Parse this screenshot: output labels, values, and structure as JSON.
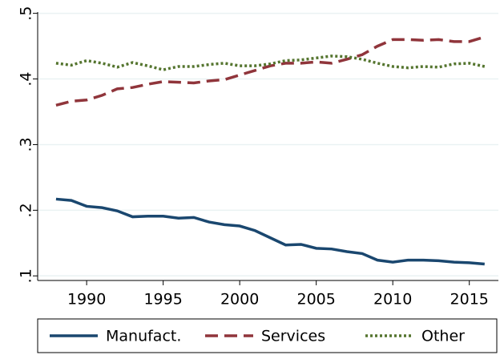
{
  "chart_data": {
    "type": "line",
    "x": [
      1988,
      1989,
      1990,
      1991,
      1992,
      1993,
      1994,
      1995,
      1996,
      1997,
      1998,
      1999,
      2000,
      2001,
      2002,
      2003,
      2004,
      2005,
      2006,
      2007,
      2008,
      2009,
      2010,
      2011,
      2012,
      2013,
      2014,
      2015,
      2016
    ],
    "series": [
      {
        "name": "Manufact.",
        "color": "#1a476f",
        "dash": "solid",
        "values": [
          0.217,
          0.215,
          0.206,
          0.204,
          0.199,
          0.19,
          0.191,
          0.191,
          0.188,
          0.189,
          0.182,
          0.178,
          0.176,
          0.169,
          0.158,
          0.147,
          0.148,
          0.142,
          0.141,
          0.137,
          0.134,
          0.124,
          0.121,
          0.124,
          0.124,
          0.123,
          0.121,
          0.12,
          0.118
        ]
      },
      {
        "name": "Services",
        "color": "#90353b",
        "dash": "long",
        "values": [
          0.36,
          0.366,
          0.368,
          0.375,
          0.385,
          0.387,
          0.392,
          0.396,
          0.395,
          0.394,
          0.397,
          0.399,
          0.406,
          0.413,
          0.42,
          0.424,
          0.424,
          0.426,
          0.424,
          0.43,
          0.437,
          0.45,
          0.46,
          0.46,
          0.459,
          0.46,
          0.457,
          0.457,
          0.464
        ]
      },
      {
        "name": "Other",
        "color": "#55752f",
        "dash": "dot",
        "values": [
          0.424,
          0.421,
          0.428,
          0.424,
          0.418,
          0.425,
          0.42,
          0.414,
          0.419,
          0.419,
          0.422,
          0.424,
          0.42,
          0.42,
          0.423,
          0.428,
          0.429,
          0.432,
          0.435,
          0.434,
          0.43,
          0.424,
          0.419,
          0.417,
          0.419,
          0.418,
          0.423,
          0.424,
          0.419
        ]
      }
    ],
    "xlim": [
      1986.8,
      2016.9
    ],
    "xticks": [
      1990,
      1995,
      2000,
      2005,
      2010,
      2015
    ],
    "ylim": [
      0.093,
      0.502
    ],
    "yticks": [
      {
        "value": 0.1,
        "label": ".1"
      },
      {
        "value": 0.2,
        "label": ".2"
      },
      {
        "value": 0.3,
        "label": ".3"
      },
      {
        "value": 0.4,
        "label": ".4"
      },
      {
        "value": 0.5,
        "label": ".5"
      }
    ],
    "grid": true,
    "legend": "bottom"
  }
}
